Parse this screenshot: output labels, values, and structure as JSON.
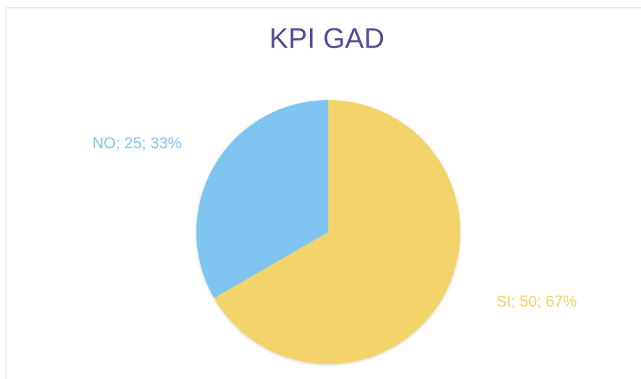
{
  "chart_data": {
    "type": "pie",
    "title": "KPI GAD",
    "categories": [
      "SI",
      "NO"
    ],
    "values": [
      50,
      25
    ],
    "value_labels": [
      "SI; 50; 67%",
      "NO; 25; 33%"
    ],
    "colors": [
      "#f2d46b",
      "#80c5f2"
    ]
  }
}
